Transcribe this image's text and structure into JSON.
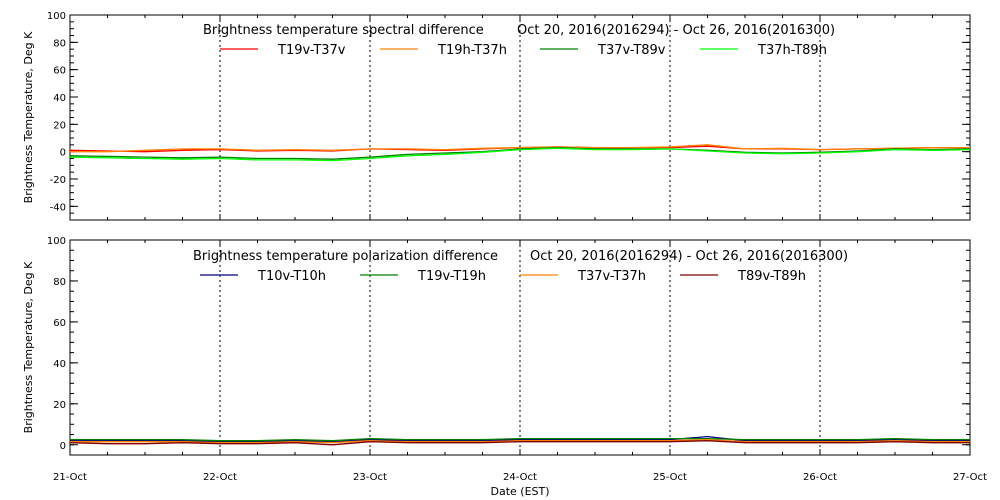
{
  "chart_data": [
    {
      "type": "line",
      "title": "Brightness temperature spectral difference",
      "date_range": "Oct 20, 2016(2016294) - Oct 26, 2016(2016300)",
      "ylabel": "Brightness Temperature, Deg K",
      "xlabel": "",
      "ylim": [
        -50,
        100
      ],
      "yticks": [
        -40,
        -20,
        0,
        20,
        40,
        60,
        80,
        100
      ],
      "xlim": [
        "2016-10-21",
        "2016-10-27"
      ],
      "grid": true,
      "legend_position": "top",
      "series": [
        {
          "name": "T19v-T37v",
          "color": "#ff0000",
          "x_days": [
            0,
            0.25,
            0.5,
            0.75,
            1,
            1.25,
            1.5,
            1.75,
            2,
            2.25,
            2.5,
            2.75,
            3,
            3.25,
            3.5,
            3.75,
            4,
            4.25,
            4.5,
            4.75,
            5,
            5.25,
            5.5,
            5.75,
            6
          ],
          "values": [
            1,
            0.5,
            0,
            1,
            1.5,
            0.5,
            1,
            0.5,
            2,
            1.5,
            1,
            2,
            3,
            3.5,
            3,
            3,
            3,
            4,
            2,
            2,
            1.5,
            2,
            2.5,
            3,
            3
          ]
        },
        {
          "name": "T19h-T37h",
          "color": "#ff8000",
          "x_days": [
            0,
            0.25,
            0.5,
            0.75,
            1,
            1.25,
            1.5,
            1.75,
            2,
            2.25,
            2.5,
            2.75,
            3,
            3.25,
            3.5,
            3.75,
            4,
            4.25,
            4.5,
            4.75,
            5,
            5.25,
            5.5,
            5.75,
            6
          ],
          "values": [
            0,
            0,
            1,
            2,
            2,
            1,
            1.5,
            1,
            2,
            2,
            1.5,
            2.5,
            3,
            3.5,
            3,
            3,
            3.5,
            5,
            2,
            2.5,
            1.5,
            2,
            2.5,
            3,
            3
          ]
        },
        {
          "name": "T37v-T89v",
          "color": "#008000",
          "x_days": [
            0,
            0.25,
            0.5,
            0.75,
            1,
            1.25,
            1.5,
            1.75,
            2,
            2.25,
            2.5,
            2.75,
            3,
            3.25,
            3.5,
            3.75,
            4,
            4.25,
            4.5,
            4.75,
            5,
            5.25,
            5.5,
            5.75,
            6
          ],
          "values": [
            -3,
            -3.5,
            -4,
            -4.5,
            -4,
            -5,
            -5,
            -5.5,
            -4,
            -2,
            -1,
            0,
            2,
            3,
            2,
            2,
            2,
            1,
            -0.5,
            -1,
            -0.5,
            0.5,
            2,
            1.5,
            2
          ]
        },
        {
          "name": "T37h-T89h",
          "color": "#00ff00",
          "x_days": [
            0,
            0.25,
            0.5,
            0.75,
            1,
            1.25,
            1.5,
            1.75,
            2,
            2.25,
            2.5,
            2.75,
            3,
            3.25,
            3.5,
            3.75,
            4,
            4.25,
            4.5,
            4.75,
            5,
            5.25,
            5.5,
            5.75,
            6
          ],
          "values": [
            -4,
            -4.5,
            -5,
            -5.5,
            -5,
            -6,
            -6,
            -6.5,
            -5,
            -3,
            -2,
            -0.5,
            1.5,
            2.5,
            1.5,
            1.5,
            2,
            0.5,
            -1,
            -1.5,
            -1,
            0,
            1.5,
            1,
            1.5
          ]
        }
      ]
    },
    {
      "type": "line",
      "title": "Brightness temperature polarization difference",
      "date_range": "Oct 20, 2016(2016294) - Oct 26, 2016(2016300)",
      "ylabel": "Brightness Temperature, Deg K",
      "xlabel": "Date (EST)",
      "ylim": [
        -5,
        100
      ],
      "yticks": [
        0,
        20,
        40,
        60,
        80,
        100
      ],
      "xlim": [
        "2016-10-21",
        "2016-10-27"
      ],
      "grid": true,
      "legend_position": "top",
      "xtick_labels": [
        "21-Oct",
        "22-Oct",
        "23-Oct",
        "24-Oct",
        "25-Oct",
        "26-Oct",
        "27-Oct"
      ],
      "series": [
        {
          "name": "T10v-T10h",
          "color": "#000080",
          "x_days": [
            0,
            0.25,
            0.5,
            0.75,
            1,
            1.25,
            1.5,
            1.75,
            2,
            2.25,
            2.5,
            2.75,
            3,
            3.25,
            3.5,
            3.75,
            4,
            4.25,
            4.5,
            4.75,
            5,
            5.25,
            5.5,
            5.75,
            6
          ],
          "values": [
            2,
            2,
            2,
            2,
            1.5,
            1.5,
            2,
            1.5,
            2.5,
            2,
            2,
            2,
            2.5,
            2.5,
            2.5,
            2.5,
            2.5,
            4,
            2,
            2,
            2,
            2,
            2.5,
            2,
            2
          ]
        },
        {
          "name": "T19v-T19h",
          "color": "#008000",
          "x_days": [
            0,
            0.25,
            0.5,
            0.75,
            1,
            1.25,
            1.5,
            1.75,
            2,
            2.25,
            2.5,
            2.75,
            3,
            3.25,
            3.5,
            3.75,
            4,
            4.25,
            4.5,
            4.75,
            5,
            5.25,
            5.5,
            5.75,
            6
          ],
          "values": [
            2.5,
            2.5,
            2.5,
            2.5,
            2,
            2,
            2.5,
            2,
            3,
            2.5,
            2.5,
            2.5,
            3,
            3,
            3,
            3,
            3,
            3,
            2.5,
            2.5,
            2.5,
            2.5,
            3,
            2.5,
            2.5
          ]
        },
        {
          "name": "T37v-T37h",
          "color": "#ff8000",
          "x_days": [
            0,
            0.25,
            0.5,
            0.75,
            1,
            1.25,
            1.5,
            1.75,
            2,
            2.25,
            2.5,
            2.75,
            3,
            3.25,
            3.5,
            3.75,
            4,
            4.25,
            4.5,
            4.75,
            5,
            5.25,
            5.5,
            5.75,
            6
          ],
          "values": [
            1.5,
            1.5,
            1.5,
            1.5,
            1,
            1,
            1.5,
            1,
            2,
            1.5,
            1.5,
            1.5,
            2,
            2,
            2,
            2,
            2,
            2.5,
            1.5,
            1.5,
            1.5,
            1.5,
            2,
            1.5,
            1.5
          ]
        },
        {
          "name": "T89v-T89h",
          "color": "#800000",
          "x_days": [
            0,
            0.25,
            0.5,
            0.75,
            1,
            1.25,
            1.5,
            1.75,
            2,
            2.25,
            2.5,
            2.75,
            3,
            3.25,
            3.5,
            3.75,
            4,
            4.25,
            4.5,
            4.75,
            5,
            5.25,
            5.5,
            5.75,
            6
          ],
          "values": [
            1,
            0.5,
            0.5,
            1,
            0.5,
            0.5,
            1,
            0,
            1.5,
            1,
            1,
            1,
            1.5,
            1.5,
            1.5,
            1.5,
            1.5,
            2,
            1,
            1,
            1,
            1,
            1.5,
            1,
            1
          ]
        }
      ]
    }
  ]
}
